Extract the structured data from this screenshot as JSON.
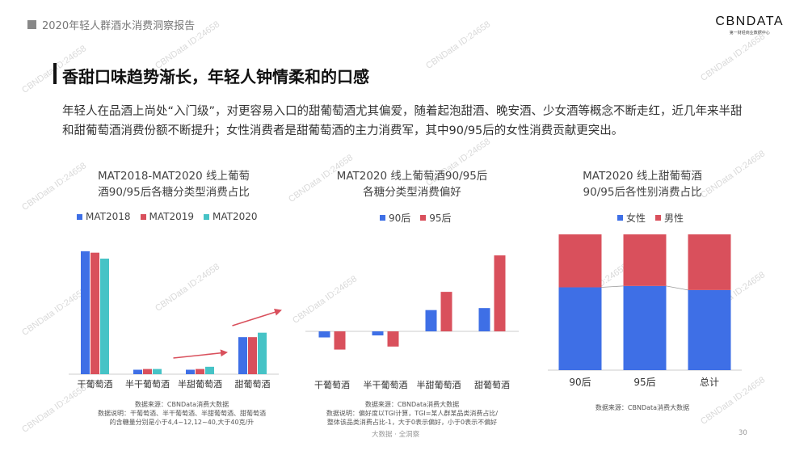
{
  "header": {
    "report_title": "2020年轻人群酒水消费洞察报告",
    "brand_logo": "CBNDATA",
    "brand_sub": "第一财经商业数据中心"
  },
  "watermark_text": "CBNData ID:24658",
  "page_heading": "香甜口味趋势渐长，年轻人钟情柔和的口感",
  "intro_text": "年轻人在品酒上尚处“入门级”，对更容易入口的甜葡萄酒尤其偏爱，随着起泡甜酒、晚安酒、少女酒等概念不断走红，近几年来半甜和甜葡萄酒消费份额不断提升；女性消费者是甜葡萄酒的主力消费军，其中90/95后的女性消费贡献更突出。",
  "colors": {
    "blue": "#3e6fe6",
    "red": "#d9505c",
    "teal": "#46c3c6",
    "arrow": "#d9505c"
  },
  "chart_data": [
    {
      "type": "bar",
      "title_line1": "MAT2018-MAT2020 线上葡萄",
      "title_line2": "酒90/95后各糖分类型消费占比",
      "categories": [
        "干葡萄酒",
        "半干葡萄酒",
        "半甜葡萄酒",
        "甜葡萄酒"
      ],
      "series": [
        {
          "name": "MAT2018",
          "color": "#3e6fe6",
          "values": [
            83,
            3,
            3,
            25
          ]
        },
        {
          "name": "MAT2019",
          "color": "#d9505c",
          "values": [
            82,
            3.5,
            3.5,
            25
          ]
        },
        {
          "name": "MAT2020",
          "color": "#46c3c6",
          "values": [
            78,
            3.5,
            5,
            28
          ]
        }
      ],
      "ylim": [
        0,
        90
      ],
      "annotations": [
        "upward-trend-arrow-半甜葡萄酒",
        "upward-trend-arrow-甜葡萄酒"
      ],
      "note_lines": [
        "数据来源：CBNData消费大数据",
        "数据说明：干葡萄酒、半干葡萄酒、半甜葡萄酒、甜葡萄酒",
        "的含糖量分别是小于4,4~12,12~40,大于40克/升"
      ]
    },
    {
      "type": "bar",
      "title_line1": "MAT2020 线上葡萄酒90/95后",
      "title_line2": "各糖分类型消费偏好",
      "categories": [
        "干葡萄酒",
        "半干葡萄酒",
        "半甜葡萄酒",
        "甜葡萄酒"
      ],
      "series": [
        {
          "name": "90后",
          "color": "#3e6fe6",
          "values": [
            -0.06,
            -0.04,
            0.21,
            0.23
          ]
        },
        {
          "name": "95后",
          "color": "#d9505c",
          "values": [
            -0.18,
            -0.15,
            0.39,
            0.75
          ]
        }
      ],
      "ylim": [
        -0.35,
        1.0
      ],
      "note_lines": [
        "数据来源：CBNData消费大数据",
        "数据说明：偏好度以TGI计算，TGI=某人群某品类消费占比/",
        "整体该品类消费占比-1，大于0表示偏好，小于0表示不偏好"
      ]
    },
    {
      "type": "bar",
      "stacked": true,
      "title_line1": "MAT2020 线上甜葡萄酒",
      "title_line2": "90/95后各性别消费占比",
      "categories": [
        "90后",
        "95后",
        "总计"
      ],
      "series": [
        {
          "name": "女性",
          "color": "#3e6fe6",
          "values": [
            0.61,
            0.62,
            0.59
          ]
        },
        {
          "name": "男性",
          "color": "#d9505c",
          "values": [
            0.39,
            0.38,
            0.41
          ]
        }
      ],
      "ylim": [
        0,
        1
      ],
      "note_lines": [
        "数据来源：CBNData消费大数据"
      ]
    }
  ],
  "footer": {
    "text": "大数据 · 全洞察",
    "page_number": "30"
  }
}
